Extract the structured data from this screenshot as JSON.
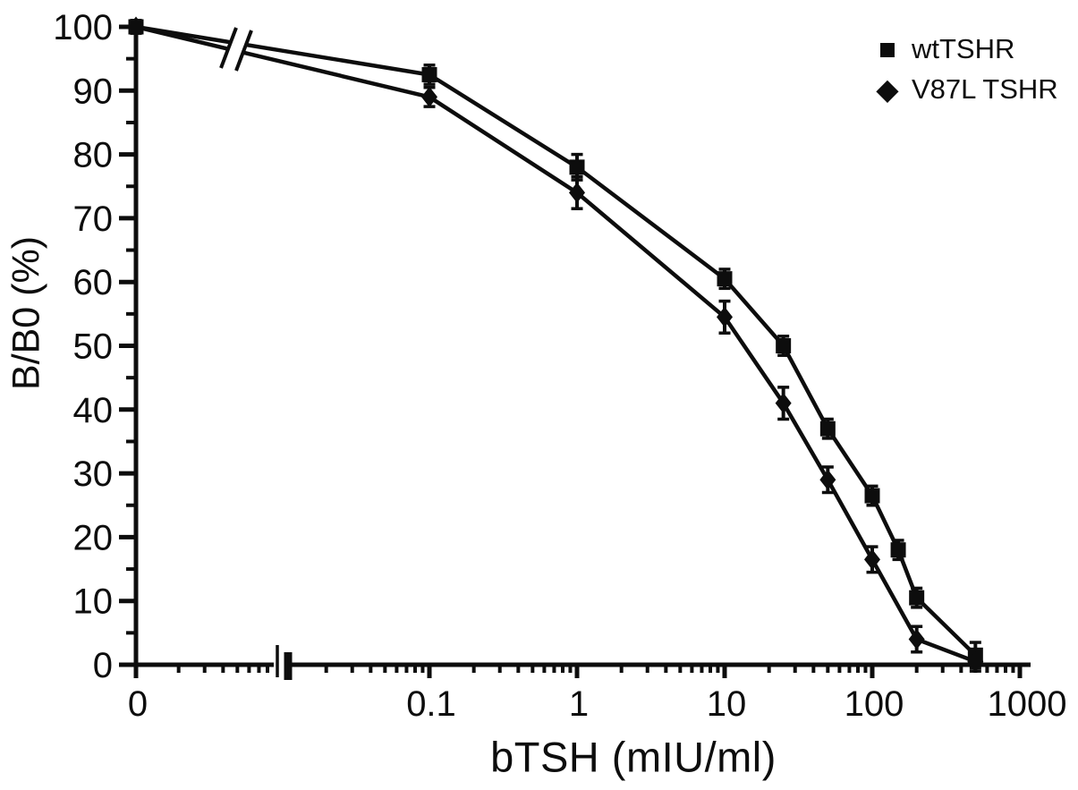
{
  "figure": {
    "background": "#ffffff",
    "ink_color": "#0d0d0d"
  },
  "chart_data": {
    "type": "line",
    "title": "",
    "xlabel": "bTSH (mIU/ml)",
    "ylabel": "B/B0 (%)",
    "x_scale": "log-with-zero-and-axis-break",
    "x_major_tick_labels": [
      "0",
      "0.1",
      "1",
      "10",
      "100",
      "1000"
    ],
    "x_major_tick_values": [
      0,
      0.1,
      1,
      10,
      100,
      1000
    ],
    "y_tick_values": [
      0,
      10,
      20,
      30,
      40,
      50,
      60,
      70,
      80,
      90,
      100
    ],
    "y_minor_tick_step": 5,
    "ylim": [
      0,
      100
    ],
    "xlim_log": [
      0.01,
      1000
    ],
    "grid": false,
    "legend_position": "top-right",
    "marker_color": "#0d0d0d",
    "axis_break": true,
    "series": [
      {
        "name": "wtTSHR",
        "marker": "square",
        "x": [
          0,
          0.1,
          1,
          10,
          25,
          50,
          100,
          150,
          200,
          500
        ],
        "y": [
          100,
          92.5,
          78,
          60.5,
          50,
          37,
          26.5,
          18,
          10.5,
          1.5
        ],
        "y_err": [
          1,
          1.5,
          2,
          1.5,
          1.5,
          1.5,
          1.5,
          1.5,
          1.5,
          2
        ]
      },
      {
        "name": "V87L TSHR",
        "marker": "diamond",
        "x": [
          0,
          0.1,
          1,
          10,
          25,
          50,
          100,
          200,
          500
        ],
        "y": [
          100,
          89,
          74,
          54.5,
          41,
          29,
          16.5,
          4,
          0.5
        ],
        "y_err": [
          1,
          1.5,
          2.5,
          2.5,
          2.5,
          2,
          2,
          2,
          1.5
        ]
      }
    ]
  }
}
